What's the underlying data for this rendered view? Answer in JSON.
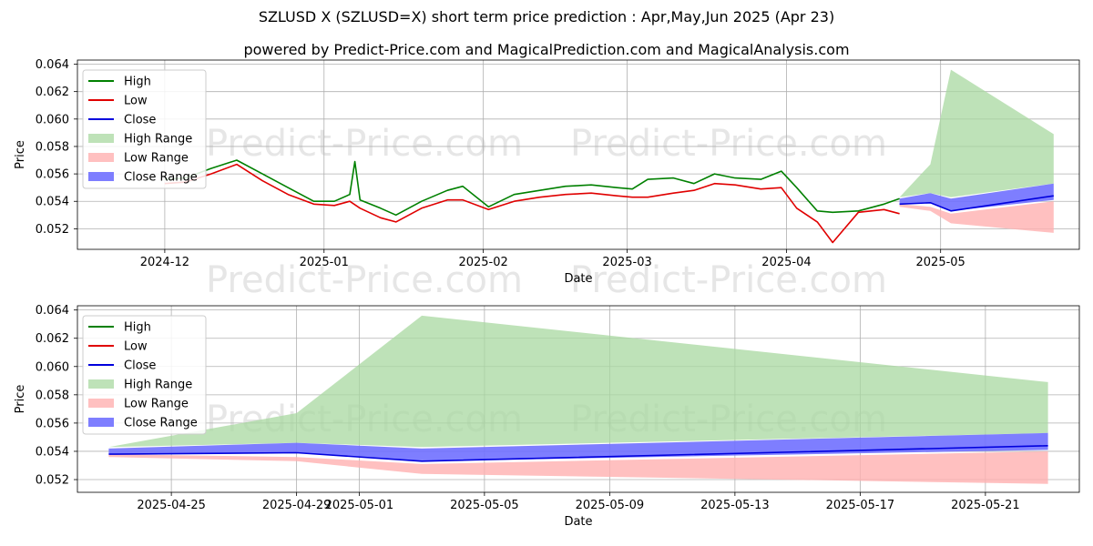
{
  "title": "SZLUSD X (SZLUSD=X) short term price prediction : Apr,May,Jun 2025 (Apr 23)",
  "subtitle": "powered by Predict-Price.com and MagicalPrediction.com and MagicalAnalysis.com",
  "watermark": "Predict-Price.com",
  "colors": {
    "high": "#008000",
    "low": "#e00000",
    "close": "#0000dd",
    "high_range": "#a8d8a0",
    "low_range": "#ffb0b0",
    "close_range": "#7070ff",
    "grid": "#b0b0b0"
  },
  "chart_data": [
    {
      "type": "line",
      "xlabel": "Date",
      "ylabel": "Price",
      "xlim": [
        "2024-11-14",
        "2025-05-28"
      ],
      "ylim": [
        0.0505,
        0.0643
      ],
      "x_ticks": [
        "2024-12",
        "2025-01",
        "2025-02",
        "2025-03",
        "2025-04",
        "2025-05"
      ],
      "y_ticks": [
        "0.052",
        "0.054",
        "0.056",
        "0.058",
        "0.060",
        "0.062",
        "0.064"
      ],
      "grid": true,
      "legend_placement": "top-left",
      "legend": [
        "High",
        "Low",
        "Close",
        "High Range",
        "Low Range",
        "Close Range"
      ],
      "series": [
        {
          "name": "High",
          "x": [
            "2024-12-01",
            "2024-12-05",
            "2024-12-10",
            "2024-12-15",
            "2024-12-20",
            "2024-12-25",
            "2024-12-30",
            "2025-01-03",
            "2025-01-06",
            "2025-01-07",
            "2025-01-08",
            "2025-01-12",
            "2025-01-15",
            "2025-01-20",
            "2025-01-25",
            "2025-01-28",
            "2025-02-02",
            "2025-02-07",
            "2025-02-12",
            "2025-02-17",
            "2025-02-22",
            "2025-02-27",
            "2025-03-02",
            "2025-03-05",
            "2025-03-10",
            "2025-03-14",
            "2025-03-18",
            "2025-03-22",
            "2025-03-27",
            "2025-03-31",
            "2025-04-03",
            "2025-04-07",
            "2025-04-10",
            "2025-04-15",
            "2025-04-20",
            "2025-04-23"
          ],
          "values": [
            0.0556,
            0.0557,
            0.0564,
            0.057,
            0.056,
            0.055,
            0.054,
            0.054,
            0.0545,
            0.0569,
            0.0541,
            0.0535,
            0.053,
            0.054,
            0.0548,
            0.0551,
            0.0536,
            0.0545,
            0.0548,
            0.0551,
            0.0552,
            0.055,
            0.0549,
            0.0556,
            0.0557,
            0.0553,
            0.056,
            0.0557,
            0.0556,
            0.0562,
            0.055,
            0.0533,
            0.0532,
            0.0533,
            0.0538,
            0.0542
          ]
        },
        {
          "name": "Low",
          "x": [
            "2024-12-01",
            "2024-12-05",
            "2024-12-10",
            "2024-12-15",
            "2024-12-20",
            "2024-12-25",
            "2024-12-30",
            "2025-01-03",
            "2025-01-06",
            "2025-01-08",
            "2025-01-12",
            "2025-01-15",
            "2025-01-20",
            "2025-01-25",
            "2025-01-28",
            "2025-02-02",
            "2025-02-07",
            "2025-02-12",
            "2025-02-17",
            "2025-02-22",
            "2025-02-27",
            "2025-03-02",
            "2025-03-05",
            "2025-03-10",
            "2025-03-14",
            "2025-03-18",
            "2025-03-22",
            "2025-03-27",
            "2025-03-31",
            "2025-04-03",
            "2025-04-07",
            "2025-04-10",
            "2025-04-15",
            "2025-04-20",
            "2025-04-23"
          ],
          "values": [
            0.0553,
            0.0554,
            0.056,
            0.0567,
            0.0555,
            0.0545,
            0.0538,
            0.0537,
            0.054,
            0.0535,
            0.0528,
            0.0525,
            0.0535,
            0.0541,
            0.0541,
            0.0534,
            0.054,
            0.0543,
            0.0545,
            0.0546,
            0.0544,
            0.0543,
            0.0543,
            0.0546,
            0.0548,
            0.0553,
            0.0552,
            0.0549,
            0.055,
            0.0535,
            0.0525,
            0.051,
            0.0532,
            0.0534,
            0.0531
          ]
        },
        {
          "name": "Close",
          "x": [
            "2025-04-23",
            "2025-04-29",
            "2025-05-03",
            "2025-05-23"
          ],
          "values": [
            0.0538,
            0.0539,
            0.0533,
            0.0544
          ]
        },
        {
          "name": "High Range",
          "x": [
            "2025-04-23",
            "2025-04-29",
            "2025-05-03",
            "2025-05-23"
          ],
          "upper": [
            0.0543,
            0.0567,
            0.0636,
            0.0589
          ],
          "lower": [
            0.0543,
            0.0546,
            0.0543,
            0.0553
          ]
        },
        {
          "name": "Low Range",
          "x": [
            "2025-04-23",
            "2025-04-29",
            "2025-05-03",
            "2025-05-23"
          ],
          "upper": [
            0.0538,
            0.0536,
            0.0531,
            0.054
          ],
          "lower": [
            0.0536,
            0.0533,
            0.0524,
            0.0517
          ]
        },
        {
          "name": "Close Range",
          "x": [
            "2025-04-23",
            "2025-04-29",
            "2025-05-03",
            "2025-05-23"
          ],
          "upper": [
            0.0542,
            0.0546,
            0.0542,
            0.0553
          ],
          "lower": [
            0.0538,
            0.0539,
            0.0533,
            0.0541
          ]
        }
      ]
    },
    {
      "type": "line",
      "xlabel": "Date",
      "ylabel": "Price",
      "xlim": [
        "2025-04-22",
        "2025-05-24"
      ],
      "ylim": [
        0.0511,
        0.0643
      ],
      "x_ticks": [
        "2025-04-25",
        "2025-04-29",
        "2025-05-01",
        "2025-05-05",
        "2025-05-09",
        "2025-05-13",
        "2025-05-17",
        "2025-05-21"
      ],
      "y_ticks": [
        "0.052",
        "0.054",
        "0.056",
        "0.058",
        "0.060",
        "0.062",
        "0.064"
      ],
      "grid": true,
      "legend_placement": "top-left",
      "legend": [
        "High",
        "Low",
        "Close",
        "High Range",
        "Low Range",
        "Close Range"
      ],
      "series": [
        {
          "name": "Close",
          "x": [
            "2025-04-23",
            "2025-04-29",
            "2025-05-03",
            "2025-05-23"
          ],
          "values": [
            0.0538,
            0.0539,
            0.0533,
            0.0544
          ]
        },
        {
          "name": "High Range",
          "x": [
            "2025-04-23",
            "2025-04-29",
            "2025-05-03",
            "2025-05-23"
          ],
          "upper": [
            0.0543,
            0.0567,
            0.0636,
            0.0589
          ],
          "lower": [
            0.0543,
            0.0546,
            0.0543,
            0.0553
          ]
        },
        {
          "name": "Low Range",
          "x": [
            "2025-04-23",
            "2025-04-29",
            "2025-05-03",
            "2025-05-23"
          ],
          "upper": [
            0.0538,
            0.0536,
            0.0531,
            0.054
          ],
          "lower": [
            0.0536,
            0.0533,
            0.0524,
            0.0517
          ]
        },
        {
          "name": "Close Range",
          "x": [
            "2025-04-23",
            "2025-04-29",
            "2025-05-03",
            "2025-05-23"
          ],
          "upper": [
            0.0542,
            0.0546,
            0.0542,
            0.0553
          ],
          "lower": [
            0.0538,
            0.0539,
            0.0533,
            0.0541
          ]
        }
      ]
    }
  ]
}
